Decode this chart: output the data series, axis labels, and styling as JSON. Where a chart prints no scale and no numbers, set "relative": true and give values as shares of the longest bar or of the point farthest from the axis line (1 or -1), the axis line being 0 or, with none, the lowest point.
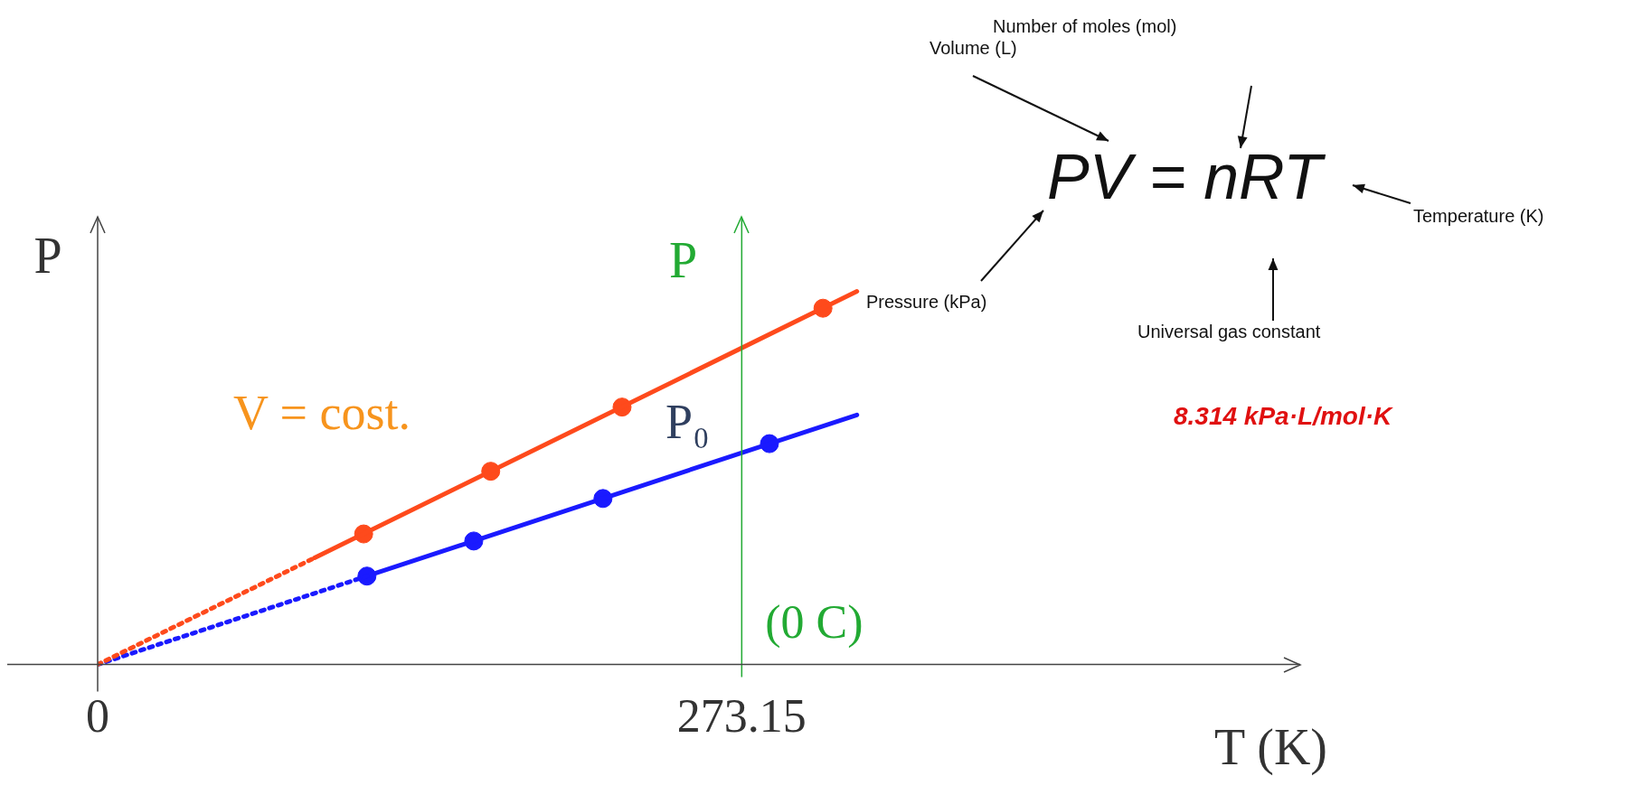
{
  "chart_data": {
    "type": "line",
    "relative": true,
    "xlabel": "T (K)",
    "ylabel": "P",
    "xlim": [
      0,
      510
    ],
    "xticks": [
      0,
      273.15
    ],
    "grid": false,
    "legend": false,
    "series": [
      {
        "type": "line",
        "color": "#fe4a1c",
        "line_style": "dotted",
        "marker": "none",
        "x": [
          0,
          92
        ],
        "values": [
          0,
          0.286
        ]
      },
      {
        "type": "line",
        "color": "#fe4a1c",
        "line_style": "solid",
        "marker": "none",
        "x": [
          92,
          322
        ],
        "values": [
          0.286,
          1
        ]
      },
      {
        "type": "scatter",
        "color": "#fe4a1c",
        "marker": "circle",
        "x": [
          112.8,
          166.7,
          222.4,
          307.6
        ],
        "values": [
          0.35,
          0.518,
          0.69,
          0.955
        ]
      },
      {
        "type": "line",
        "color": "#1a1aff",
        "line_style": "dotted",
        "marker": "none",
        "x": [
          0,
          114.2
        ],
        "values": [
          0,
          0.237
        ]
      },
      {
        "type": "line",
        "color": "#1a1aff",
        "line_style": "solid",
        "marker": "none",
        "x": [
          114.2,
          322
        ],
        "values": [
          0.237,
          0.669
        ]
      },
      {
        "type": "scatter",
        "color": "#1a1aff",
        "marker": "circle",
        "x": [
          114.2,
          159.5,
          214.3,
          284.9
        ],
        "values": [
          0.237,
          0.331,
          0.445,
          0.592
        ]
      }
    ],
    "ref_lines": [
      {
        "axis": "x",
        "value": 273.15,
        "label": "(0 C)",
        "color": "#22aa33"
      }
    ],
    "annotations": [
      "V = cost.",
      "P₀",
      "P",
      "PV = nRT",
      "Volume (L)",
      "Number of moles (mol)",
      "Temperature (K)",
      "Pressure (kPa)",
      "Universal gas constant",
      "8.314 kPa·L/mol·K"
    ]
  }
}
